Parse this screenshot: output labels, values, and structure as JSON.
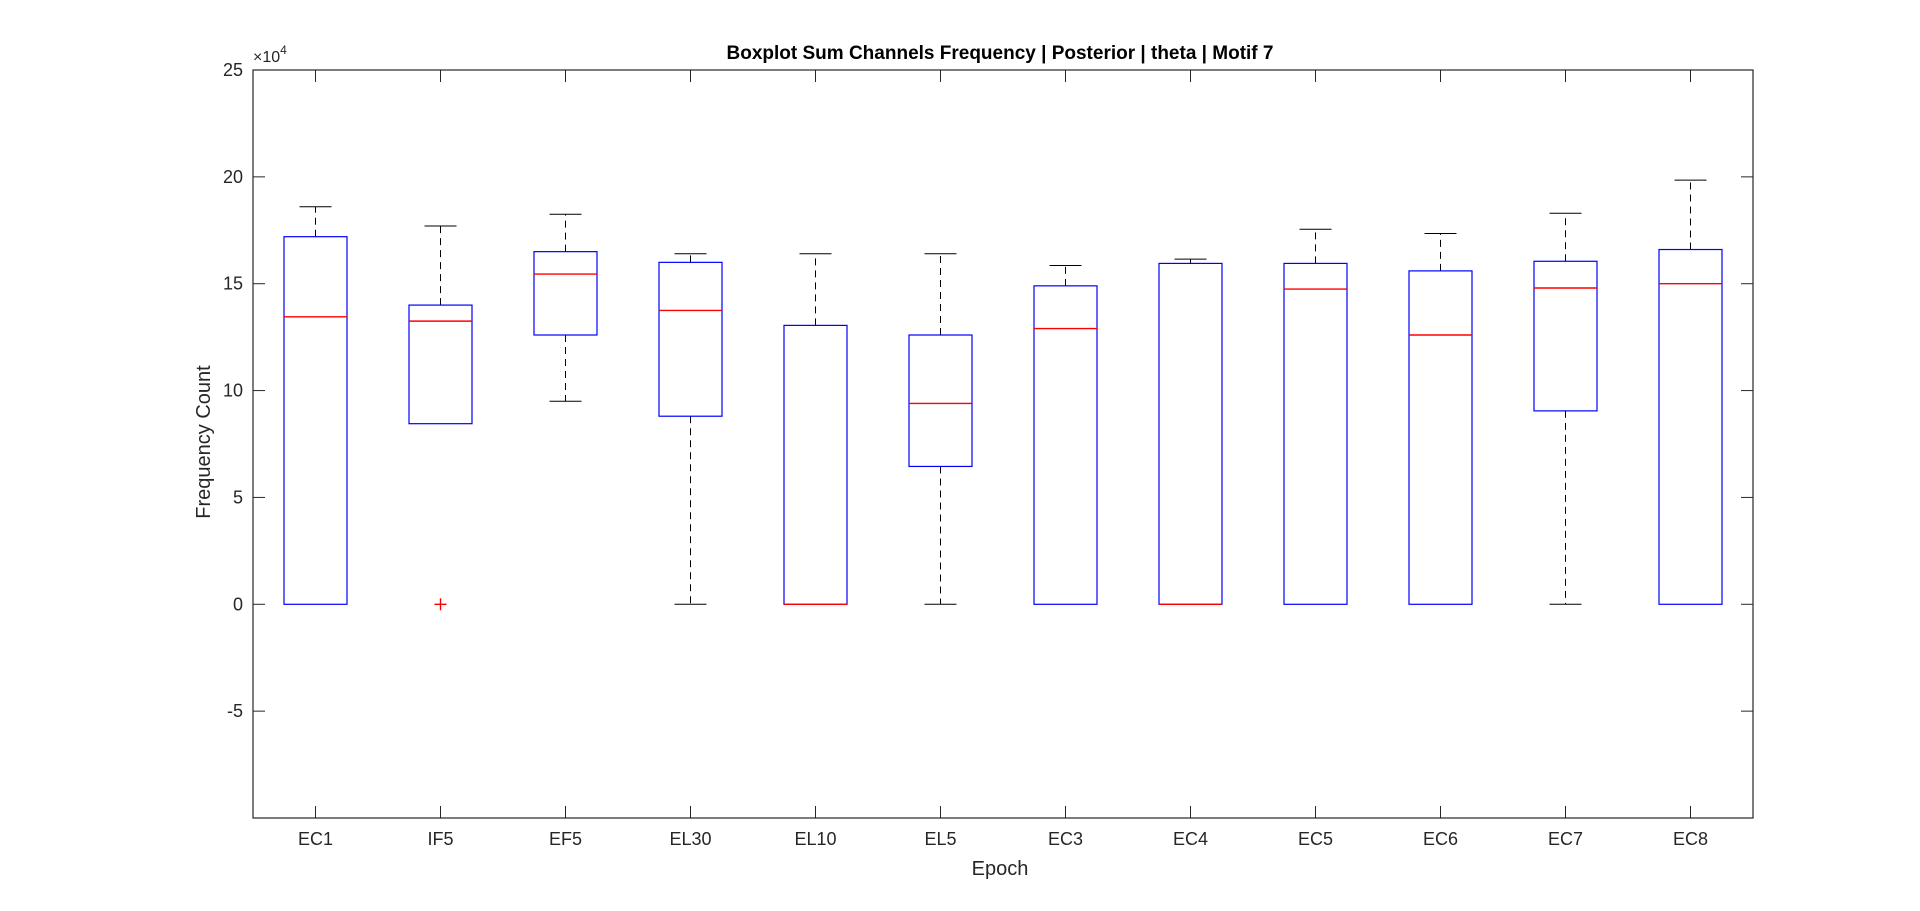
{
  "chart_data": {
    "type": "boxplot",
    "title": "Boxplot Sum Channels Frequency | Posterior | theta | Motif 7",
    "xlabel": "Epoch",
    "ylabel": "Frequency Count",
    "exponent_label": "×10",
    "exponent_power": "4",
    "ylim": [
      -10,
      25
    ],
    "yticks": [
      -5,
      0,
      5,
      10,
      15,
      20,
      25
    ],
    "ytick_labels": [
      "-5",
      "0",
      "5",
      "10",
      "15",
      "20",
      "25"
    ],
    "grid": false,
    "colors": {
      "box": "#0000ff",
      "median": "#ff0000",
      "whisker": "#000000",
      "outlier": "#ff0000"
    },
    "categories": [
      "EC1",
      "IF5",
      "EF5",
      "EL30",
      "EL10",
      "EL5",
      "EC3",
      "EC4",
      "EC5",
      "EC6",
      "EC7",
      "EC8"
    ],
    "boxes": [
      {
        "label": "EC1",
        "whisker_low": 0,
        "q1": 0,
        "median": 13.45,
        "q3": 17.2,
        "whisker_high": 18.6,
        "outliers": []
      },
      {
        "label": "IF5",
        "whisker_low": 8.45,
        "q1": 8.45,
        "median": 13.25,
        "q3": 14.0,
        "whisker_high": 17.7,
        "outliers": [
          0
        ]
      },
      {
        "label": "EF5",
        "whisker_low": 9.5,
        "q1": 12.6,
        "median": 15.45,
        "q3": 16.5,
        "whisker_high": 18.25,
        "outliers": []
      },
      {
        "label": "EL30",
        "whisker_low": 0,
        "q1": 8.8,
        "median": 13.75,
        "q3": 16.0,
        "whisker_high": 16.4,
        "outliers": []
      },
      {
        "label": "EL10",
        "whisker_low": 0,
        "q1": 0,
        "median": 0,
        "q3": 13.05,
        "whisker_high": 16.4,
        "outliers": []
      },
      {
        "label": "EL5",
        "whisker_low": 0,
        "q1": 6.45,
        "median": 9.4,
        "q3": 12.6,
        "whisker_high": 16.4,
        "outliers": []
      },
      {
        "label": "EC3",
        "whisker_low": 0,
        "q1": 0,
        "median": 12.9,
        "q3": 14.9,
        "whisker_high": 15.85,
        "outliers": []
      },
      {
        "label": "EC4",
        "whisker_low": 0,
        "q1": 0,
        "median": 0,
        "q3": 15.95,
        "whisker_high": 16.15,
        "outliers": []
      },
      {
        "label": "EC5",
        "whisker_low": 0,
        "q1": 0,
        "median": 14.75,
        "q3": 15.95,
        "whisker_high": 17.55,
        "outliers": []
      },
      {
        "label": "EC6",
        "whisker_low": 0,
        "q1": 0,
        "median": 12.6,
        "q3": 15.6,
        "whisker_high": 17.35,
        "outliers": []
      },
      {
        "label": "EC7",
        "whisker_low": 0,
        "q1": 9.05,
        "median": 14.8,
        "q3": 16.05,
        "whisker_high": 18.3,
        "outliers": []
      },
      {
        "label": "EC8",
        "whisker_low": 0,
        "q1": 0,
        "median": 15.0,
        "q3": 16.6,
        "whisker_high": 19.85,
        "outliers": []
      }
    ]
  }
}
